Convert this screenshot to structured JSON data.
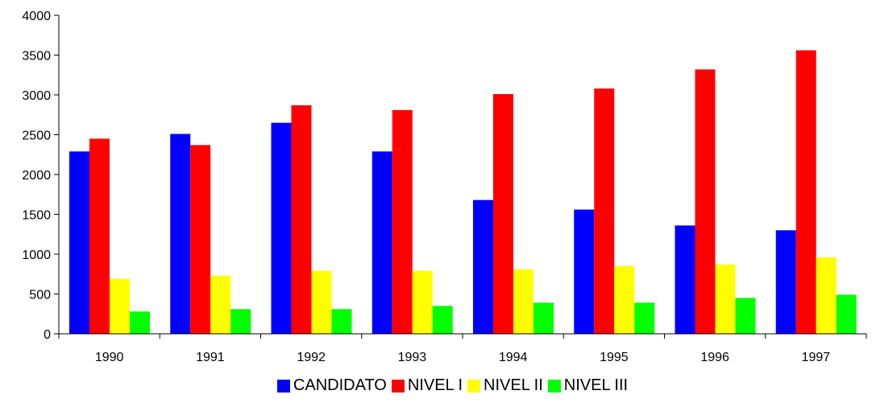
{
  "chart_data": {
    "type": "bar",
    "title": "",
    "xlabel": "",
    "ylabel": "",
    "ylim": [
      0,
      4000
    ],
    "yticks": [
      0,
      500,
      1000,
      1500,
      2000,
      2500,
      3000,
      3500,
      4000
    ],
    "categories": [
      "1990",
      "1991",
      "1992",
      "1993",
      "1994",
      "1995",
      "1996",
      "1997"
    ],
    "grid": false,
    "legend_position": "bottom",
    "series": [
      {
        "name": "CANDIDATO",
        "color": "#0000FF",
        "values": [
          2290,
          2510,
          2650,
          2290,
          1680,
          1560,
          1360,
          1300
        ]
      },
      {
        "name": "NIVEL I",
        "color": "#FF0000",
        "values": [
          2450,
          2370,
          2870,
          2810,
          3010,
          3080,
          3320,
          3560
        ]
      },
      {
        "name": "NIVEL II",
        "color": "#FFFF00",
        "values": [
          690,
          730,
          790,
          790,
          810,
          850,
          870,
          960
        ]
      },
      {
        "name": "NIVEL III",
        "color": "#00FF00",
        "values": [
          280,
          310,
          310,
          350,
          390,
          390,
          450,
          490
        ]
      }
    ]
  }
}
